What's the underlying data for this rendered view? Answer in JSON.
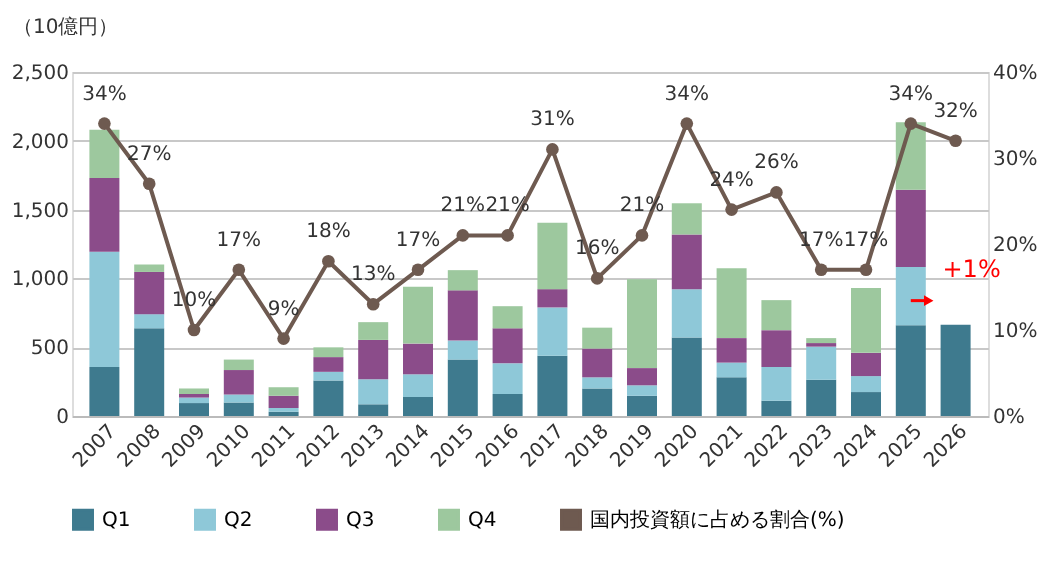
{
  "chart_data": {
    "type": "bar",
    "stacked": true,
    "ylabel": "（10億円）",
    "categories": [
      "2007",
      "2008",
      "2009",
      "2010",
      "2011",
      "2012",
      "2013",
      "2014",
      "2015",
      "2016",
      "2017",
      "2018",
      "2019",
      "2020",
      "2021",
      "2022",
      "2023",
      "2024",
      "2025",
      "2026"
    ],
    "series": [
      {
        "name": "Q1",
        "color": "#3e7a8e",
        "values": [
          356,
          637,
          94,
          98,
          31,
          258,
          85,
          138,
          410,
          160,
          437,
          200,
          147,
          570,
          281,
          111,
          263,
          174,
          659,
          664
        ]
      },
      {
        "name": "Q2",
        "color": "#8ec8d8",
        "values": [
          838,
          103,
          40,
          58,
          27,
          63,
          182,
          165,
          138,
          223,
          352,
          81,
          76,
          352,
          107,
          245,
          241,
          116,
          424,
          null
        ]
      },
      {
        "name": "Q3",
        "color": "#8b4c8a",
        "values": [
          535,
          307,
          26,
          178,
          89,
          107,
          286,
          223,
          365,
          254,
          133,
          209,
          125,
          397,
          178,
          268,
          26,
          169,
          561,
          null
        ]
      },
      {
        "name": "Q4",
        "color": "#9dc89e",
        "values": [
          352,
          54,
          40,
          76,
          62,
          71,
          129,
          414,
          147,
          161,
          482,
          152,
          646,
          227,
          508,
          218,
          36,
          472,
          490,
          null
        ]
      },
      {
        "name": "国内投資額に占める割合(%)",
        "type": "line",
        "axis": "y2",
        "color": "#6e5a50",
        "marker": "circle",
        "values": [
          34,
          27,
          10,
          17,
          9,
          18,
          13,
          17,
          21,
          21,
          31,
          16,
          21,
          34,
          24,
          26,
          17,
          17,
          34,
          32
        ],
        "value_labels": [
          "34%",
          "27%",
          "10%",
          "17%",
          "9%",
          "18%",
          "13%",
          "17%",
          "21%",
          "21%",
          "31%",
          "16%",
          "21%",
          "34%",
          "24%",
          "26%",
          "17%",
          "17%",
          "34%",
          "32%"
        ]
      }
    ],
    "ylim": [
      0,
      2500
    ],
    "yticks": [
      0,
      500,
      {
        "value": 1000,
        "label": "1,000"
      },
      {
        "value": 1500,
        "label": "1,500"
      },
      {
        "value": 2000,
        "label": "2,000"
      },
      {
        "value": 2500,
        "label": "2,500"
      }
    ],
    "y2lim": [
      0,
      40
    ],
    "y2ticks": [
      {
        "value": 0,
        "label": "0%"
      },
      {
        "value": 10,
        "label": "10%"
      },
      {
        "value": 20,
        "label": "20%"
      },
      {
        "value": 30,
        "label": "30%"
      },
      {
        "value": 40,
        "label": "40%"
      }
    ],
    "grid": "y",
    "legend": "bottom",
    "annotations": [
      {
        "text": "+1%",
        "x": "2026",
        "y": 664
      }
    ]
  }
}
